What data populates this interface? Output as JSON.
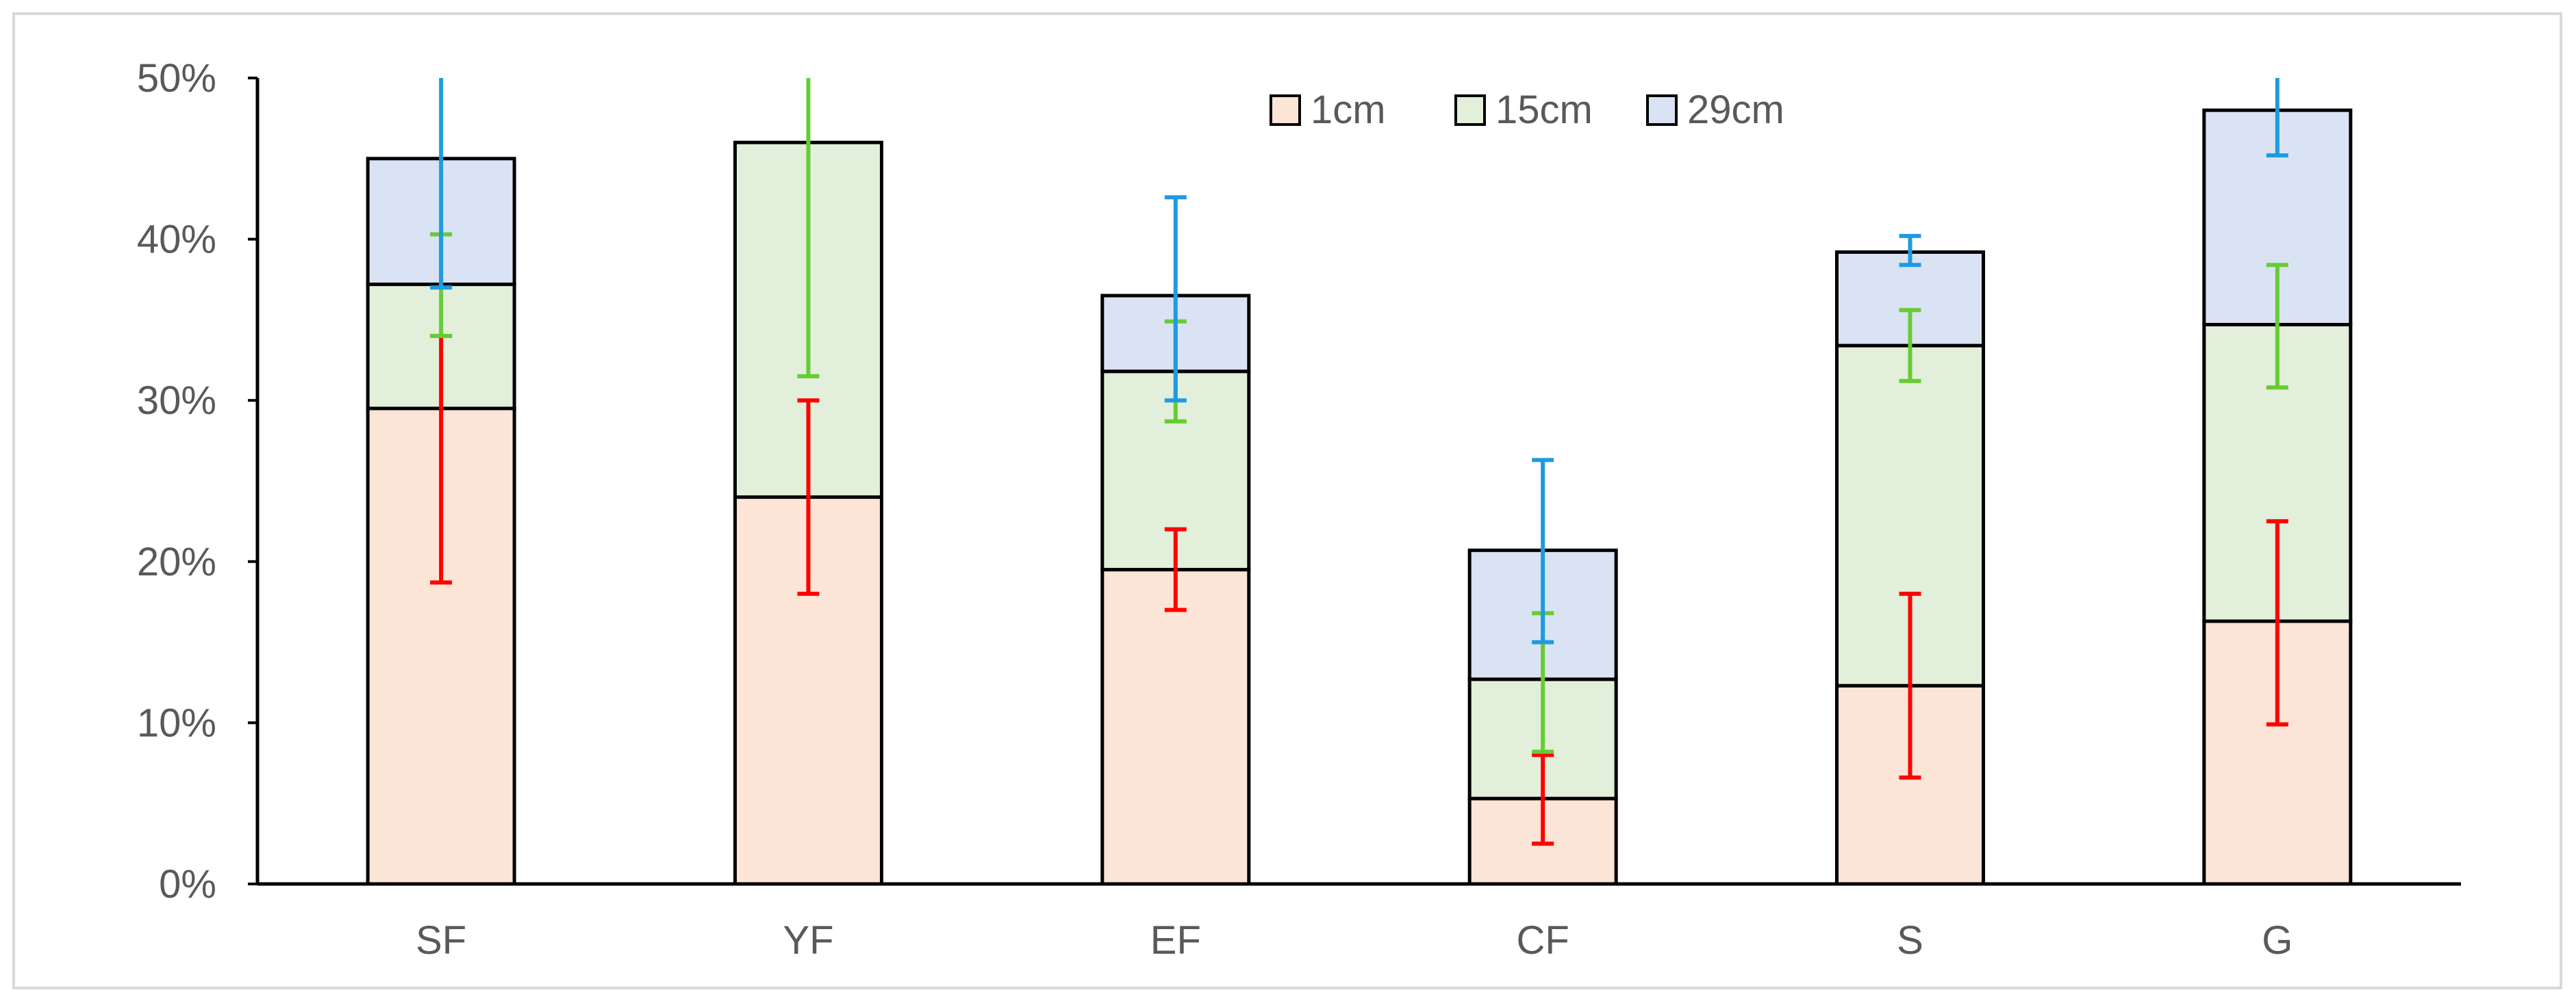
{
  "chart_data": {
    "type": "bar",
    "stacked": true,
    "title": "",
    "xlabel": "",
    "ylabel": "",
    "ylim": [
      0,
      50
    ],
    "y_ticks": [
      "0%",
      "10%",
      "20%",
      "30%",
      "40%",
      "50%"
    ],
    "y_tick_values": [
      0,
      10,
      20,
      30,
      40,
      50
    ],
    "categories": [
      "SF",
      "YF",
      "EF",
      "CF",
      "S",
      "G"
    ],
    "series": [
      {
        "name": "1cm",
        "fill": "#fce4d6",
        "error_color": "#ff0000",
        "values": [
          29.5,
          24.0,
          19.5,
          5.3,
          12.3,
          16.3
        ],
        "error_low": [
          18.7,
          18.0,
          17.0,
          2.5,
          6.6,
          9.9
        ],
        "error_high": [
          34.0,
          30.0,
          22.0,
          8.0,
          18.0,
          22.5
        ]
      },
      {
        "name": "15cm",
        "fill": "#e2efda",
        "error_color": "#66cc33",
        "values": [
          7.7,
          22.0,
          12.3,
          7.4,
          21.1,
          18.4
        ],
        "error_low": [
          34.0,
          31.5,
          28.7,
          8.2,
          31.2,
          30.8
        ],
        "error_high": [
          40.3,
          50.0,
          34.9,
          16.8,
          35.6,
          38.4
        ]
      },
      {
        "name": "29cm",
        "fill": "#dae3f3",
        "error_color": "#1e9be0",
        "values": [
          7.8,
          0.0,
          4.7,
          8.0,
          5.8,
          13.3
        ],
        "error_low": [
          37.0,
          null,
          30.0,
          15.0,
          38.4,
          45.2
        ],
        "error_high": [
          50.0,
          null,
          42.6,
          26.3,
          40.2,
          50.0
        ]
      }
    ],
    "legend": {
      "position": "top-center",
      "entries": [
        "1cm",
        "15cm",
        "29cm"
      ]
    }
  }
}
